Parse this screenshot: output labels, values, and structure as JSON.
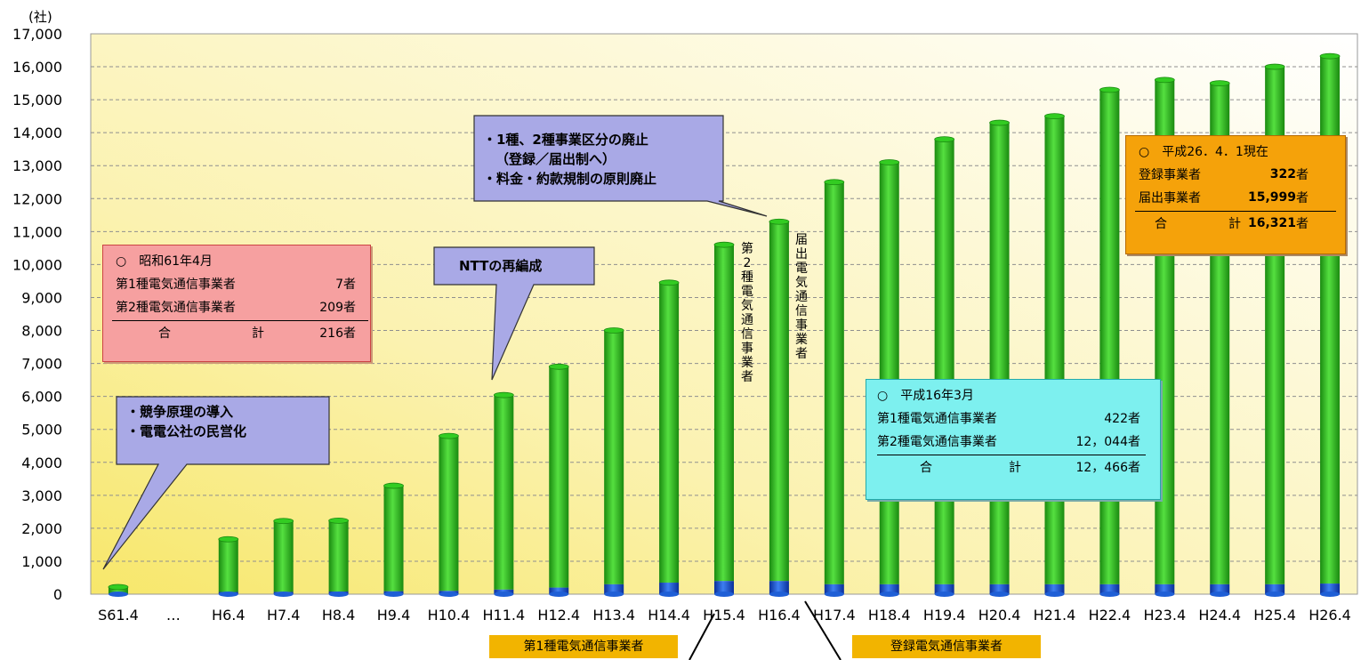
{
  "chart_data": {
    "type": "bar",
    "unit_label": "(社)",
    "categories": [
      "S61.4",
      "…",
      "H6.4",
      "H7.4",
      "H8.4",
      "H9.4",
      "H10.4",
      "H11.4",
      "H12.4",
      "H13.4",
      "H14.4",
      "H15.4",
      "H16.4",
      "H17.4",
      "H18.4",
      "H19.4",
      "H20.4",
      "H21.4",
      "H22.4",
      "H23.4",
      "H24.4",
      "H25.4",
      "H26.4"
    ],
    "series": [
      {
        "values": [
          7,
          null,
          67,
          70,
          80,
          90,
          100,
          140,
          200,
          300,
          350,
          400,
          400,
          300,
          300,
          300,
          300,
          300,
          300,
          300,
          300,
          300,
          322
        ]
      },
      {
        "values": [
          209,
          null,
          1600,
          2150,
          2150,
          3200,
          4700,
          5900,
          6700,
          7700,
          9100,
          10200,
          10900,
          12200,
          12800,
          13500,
          14000,
          14200,
          15000,
          15300,
          15200,
          15700,
          15999
        ]
      }
    ],
    "totals": [
      216,
      null,
      1667,
      2220,
      2230,
      3290,
      4800,
      6040,
      6900,
      8000,
      9450,
      10600,
      11300,
      12500,
      13100,
      13800,
      14300,
      14500,
      15300,
      15600,
      15500,
      16000,
      16321
    ],
    "ylim": [
      0,
      17000
    ],
    "yticks": [
      "0",
      "1,000",
      "2,000",
      "3,000",
      "4,000",
      "5,000",
      "6,000",
      "7,000",
      "8,000",
      "9,000",
      "10,000",
      "11,000",
      "12,000",
      "13,000",
      "14,000",
      "15,000",
      "16,000",
      "17,000"
    ],
    "grid": true,
    "colors": {
      "lower": "#1f5fd6",
      "upper": "#33cc22",
      "upper_dark": "#1a8a10"
    }
  },
  "callouts": {
    "competition": [
      "・競争原理の導入",
      "・電電公社の民営化"
    ],
    "ntt": [
      "NTTの再編成"
    ],
    "reform": [
      "・1種、2種事業区分の廃止",
      "（登録／届出制へ）",
      "・料金・約款規制の原則廃止"
    ]
  },
  "box_s61": {
    "title": "○　昭和61年4月",
    "rows": [
      {
        "label": "第1種電気通信事業者",
        "value": "7者"
      },
      {
        "label": "第2種電気通信事業者",
        "value": "209者"
      }
    ],
    "total_label_1": "合",
    "total_label_2": "計",
    "total_value": "216者"
  },
  "box_h16": {
    "title": "○　平成16年3月",
    "rows": [
      {
        "label": "第1種電気通信事業者",
        "value": "422者"
      },
      {
        "label": "第2種電気通信事業者",
        "value": "12，044者"
      }
    ],
    "total_label_1": "合",
    "total_label_2": "計",
    "total_value": "12，466者"
  },
  "box_h26": {
    "title": "○　平成26．4．1現在",
    "rows": [
      {
        "label": "登録事業者",
        "value": "322",
        "suffix": "者"
      },
      {
        "label": "届出事業者",
        "value": "15,999",
        "suffix": "者"
      }
    ],
    "total_label_1": "合",
    "total_label_2": "計",
    "total_value": "16,321",
    "total_suffix": "者"
  },
  "vertical_labels": {
    "type2": "第2種電気通信事業者",
    "notify": "届出電気通信事業者"
  },
  "bottom_tags": {
    "type1": "第1種電気通信事業者",
    "registered": "登録電気通信事業者"
  }
}
